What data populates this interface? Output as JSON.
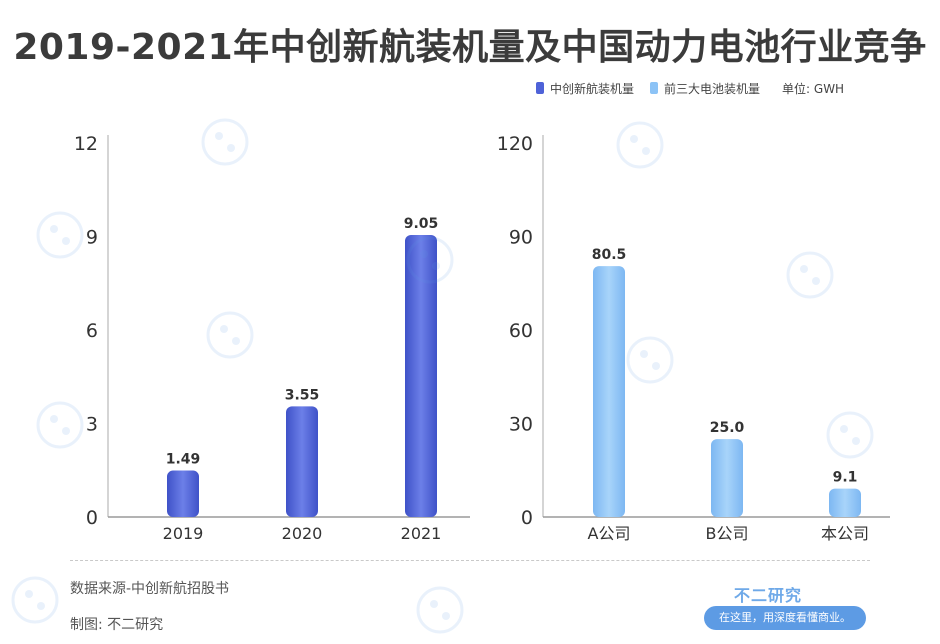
{
  "title": "2019-2021年中创新航装机量及中国动力电池行业竞争",
  "legend": {
    "items": [
      {
        "label": "中创新航装机量",
        "color": "#4e62d8"
      },
      {
        "label": "前三大电池装机量",
        "color": "#8cc3f6"
      }
    ],
    "unit": "单位: GWH"
  },
  "chart_data": [
    {
      "type": "bar",
      "categories": [
        "2019",
        "2020",
        "2021"
      ],
      "values": [
        1.49,
        3.55,
        9.05
      ],
      "data_labels": [
        "1.49",
        "3.55",
        "9.05"
      ],
      "series_name": "中创新航装机量",
      "yticks": [
        "0",
        "3",
        "6",
        "9",
        "12"
      ],
      "ylim": [
        0,
        12
      ],
      "color": "#4e62d8",
      "label_color": "#4557c9"
    },
    {
      "type": "bar",
      "categories": [
        "A公司",
        "B公司",
        "本公司"
      ],
      "values": [
        80.5,
        25.0,
        9.1
      ],
      "data_labels": [
        "80.5",
        "25.0",
        "9.1"
      ],
      "series_name": "前三大电池装机量",
      "yticks": [
        "0",
        "30",
        "60",
        "90",
        "120"
      ],
      "ylim": [
        0,
        120
      ],
      "color": "#8cc3f6",
      "label_color": "#7fb4ea"
    }
  ],
  "footer": {
    "source": "数据来源-中创新航招股书",
    "maker": "制图: 不二研究"
  },
  "brand": {
    "name": "不二研究",
    "slogan": "在这里，用深度看懂商业。"
  }
}
